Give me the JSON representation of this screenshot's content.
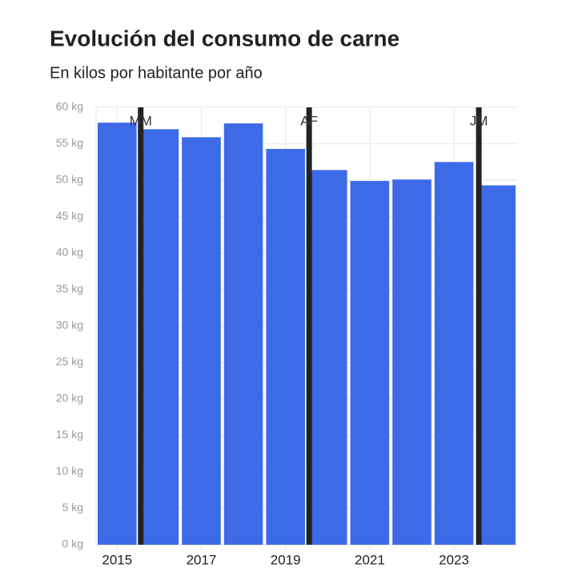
{
  "chart_data": {
    "type": "bar",
    "title": "Evolución del consumo de carne",
    "subtitle": "En kilos por habitante por año",
    "x": [
      2015,
      2016,
      2017,
      2018,
      2019,
      2020,
      2021,
      2022,
      2023,
      2024
    ],
    "values": [
      57.9,
      57.0,
      55.9,
      57.8,
      54.3,
      51.4,
      49.9,
      50.1,
      52.5,
      49.3
    ],
    "color": "#3d6be8",
    "xlim": [
      2014.5,
      2024.5
    ],
    "xticks": [
      2015,
      2017,
      2019,
      2021,
      2023
    ],
    "ylim": [
      0,
      60
    ],
    "yticks": [
      {
        "value": 0,
        "label": "0 kg"
      },
      {
        "value": 5,
        "label": "5 kg"
      },
      {
        "value": 10,
        "label": "10 kg"
      },
      {
        "value": 15,
        "label": "15 kg"
      },
      {
        "value": 20,
        "label": "20 kg"
      },
      {
        "value": 25,
        "label": "25 kg"
      },
      {
        "value": 30,
        "label": "30 kg"
      },
      {
        "value": 35,
        "label": "35 kg"
      },
      {
        "value": 40,
        "label": "40 kg"
      },
      {
        "value": 45,
        "label": "45 kg"
      },
      {
        "value": 50,
        "label": "50 kg"
      },
      {
        "value": 55,
        "label": "55 kg"
      },
      {
        "value": 60,
        "label": "60 kg"
      }
    ],
    "grid": true,
    "annotations": [
      {
        "label": "MM",
        "x": 2015.56
      },
      {
        "label": "AF",
        "x": 2019.56
      },
      {
        "label": "JM",
        "x": 2023.59
      }
    ]
  }
}
